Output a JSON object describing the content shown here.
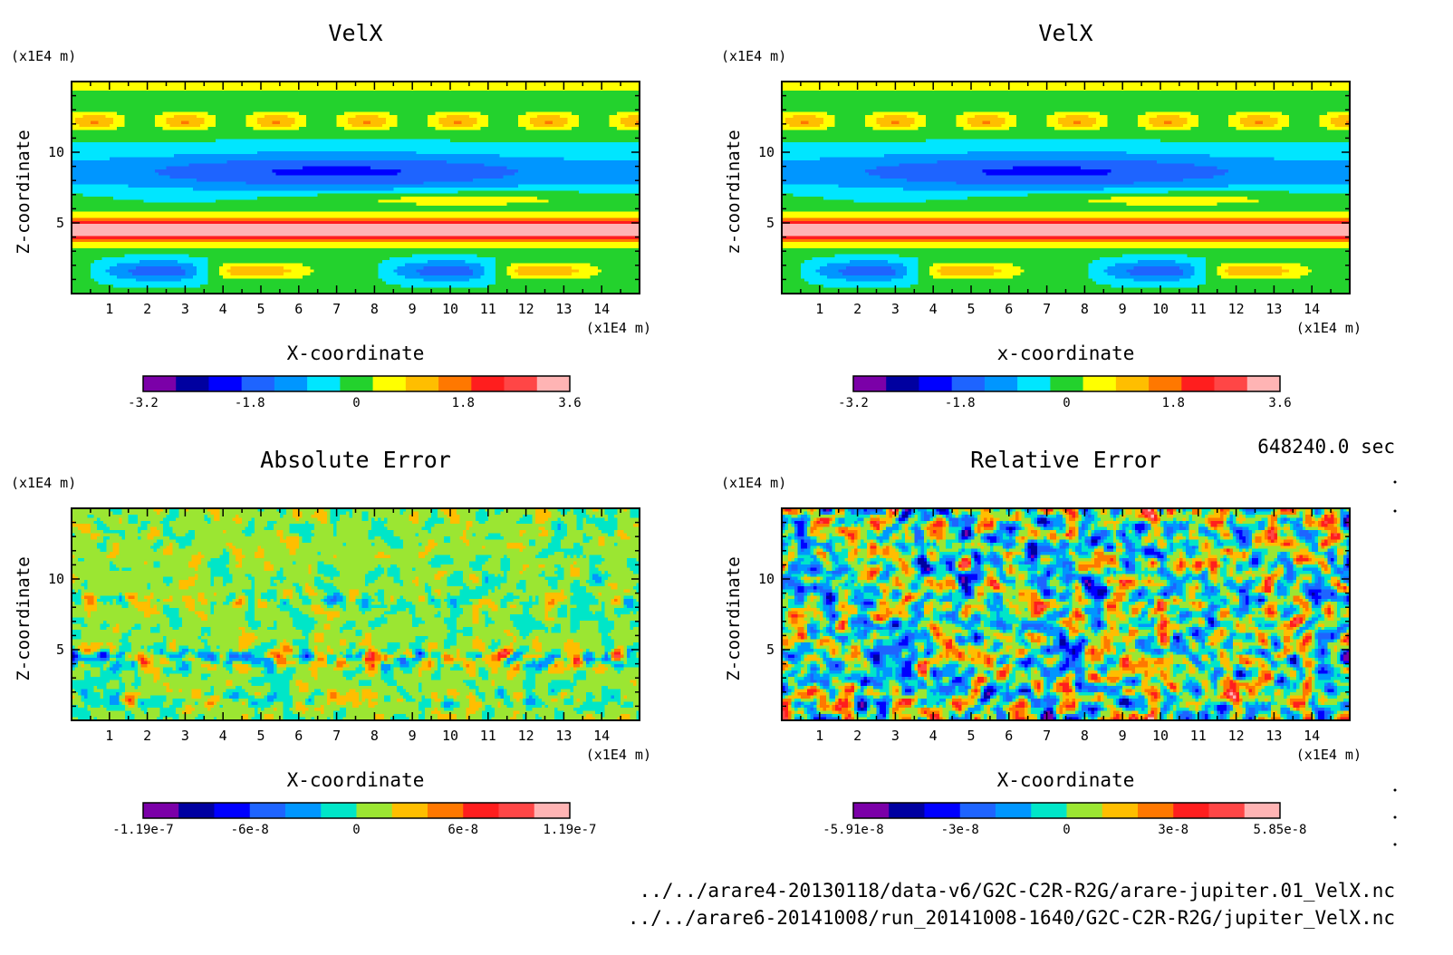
{
  "time_label": "648240.0 sec",
  "files": [
    "../../arare4-20130118/data-v6/G2C-C2R-R2G/arare-jupiter.01_VelX.nc",
    "../../arare6-20141008/run_20141008-1640/G2C-C2R-R2G/jupiter_VelX.nc"
  ],
  "chart_data": [
    {
      "type": "heatmap",
      "title": "VelX",
      "xlabel": "X-coordinate",
      "ylabel": "Z-coordinate",
      "x_unit": "(x1E4 m)",
      "y_unit": "(x1E4 m)",
      "x_ticks": [
        "1",
        "2",
        "3",
        "4",
        "5",
        "6",
        "7",
        "8",
        "9",
        "10",
        "11",
        "12",
        "13",
        "14"
      ],
      "y_ticks": [
        "5",
        "10"
      ],
      "xlim": [
        0,
        15
      ],
      "ylim": [
        0,
        15
      ],
      "pattern": "banded",
      "colorbar": {
        "range": [
          -3.2,
          3.6
        ],
        "tick_labels": [
          "-3.2",
          "-1.8",
          "0",
          "1.8",
          "3.6"
        ],
        "colors": [
          "#7b00a8",
          "#0000a0",
          "#0000ff",
          "#1e64ff",
          "#0096ff",
          "#00e6ff",
          "#23d22d",
          "#ffff00",
          "#ffbe00",
          "#ff7800",
          "#ff1e1e",
          "#ff4646",
          "#ffb4b4"
        ]
      }
    },
    {
      "type": "heatmap",
      "title": "VelX",
      "xlabel": "x-coordinate",
      "ylabel": "z-coordinate",
      "x_unit": "(x1E4 m)",
      "y_unit": "(x1E4 m)",
      "x_ticks": [
        "1",
        "2",
        "3",
        "4",
        "5",
        "6",
        "7",
        "8",
        "9",
        "10",
        "11",
        "12",
        "13",
        "14"
      ],
      "y_ticks": [
        "5",
        "10"
      ],
      "xlim": [
        0,
        15
      ],
      "ylim": [
        0,
        15
      ],
      "pattern": "banded",
      "colorbar": {
        "range": [
          -3.2,
          3.6
        ],
        "tick_labels": [
          "-3.2",
          "-1.8",
          "0",
          "1.8",
          "3.6"
        ],
        "colors": [
          "#7b00a8",
          "#0000a0",
          "#0000ff",
          "#1e64ff",
          "#0096ff",
          "#00e6ff",
          "#23d22d",
          "#ffff00",
          "#ffbe00",
          "#ff7800",
          "#ff1e1e",
          "#ff4646",
          "#ffb4b4"
        ]
      }
    },
    {
      "type": "heatmap",
      "title": "Absolute Error",
      "xlabel": "X-coordinate",
      "ylabel": "Z-coordinate",
      "x_unit": "(x1E4 m)",
      "y_unit": "(x1E4 m)",
      "x_ticks": [
        "1",
        "2",
        "3",
        "4",
        "5",
        "6",
        "7",
        "8",
        "9",
        "10",
        "11",
        "12",
        "13",
        "14"
      ],
      "y_ticks": [
        "5",
        "10"
      ],
      "xlim": [
        0,
        15
      ],
      "ylim": [
        0,
        15
      ],
      "pattern": "noise-abs",
      "colorbar": {
        "range": [
          -1.19e-07,
          1.19e-07
        ],
        "tick_labels": [
          "-1.19e-7",
          "-6e-8",
          "0",
          "6e-8",
          "1.19e-7"
        ],
        "colors": [
          "#7b00a8",
          "#0000a0",
          "#0000ff",
          "#1e64ff",
          "#0096ff",
          "#00e6c8",
          "#9be632",
          "#ffbe00",
          "#ff7800",
          "#ff1e1e",
          "#ff4646",
          "#ffb4b4"
        ]
      }
    },
    {
      "type": "heatmap",
      "title": "Relative Error",
      "xlabel": "X-coordinate",
      "ylabel": "Z-coordinate",
      "x_unit": "(x1E4 m)",
      "y_unit": "(x1E4 m)",
      "x_ticks": [
        "1",
        "2",
        "3",
        "4",
        "5",
        "6",
        "7",
        "8",
        "9",
        "10",
        "11",
        "12",
        "13",
        "14"
      ],
      "y_ticks": [
        "5",
        "10"
      ],
      "xlim": [
        0,
        15
      ],
      "ylim": [
        0,
        15
      ],
      "pattern": "noise-rel",
      "colorbar": {
        "range": [
          -5.91e-08,
          5.85e-08
        ],
        "tick_labels": [
          "-5.91e-8",
          "-3e-8",
          "0",
          "3e-8",
          "5.85e-8"
        ],
        "colors": [
          "#7b00a8",
          "#0000a0",
          "#0000ff",
          "#1e64ff",
          "#0096ff",
          "#00e6c8",
          "#9be632",
          "#ffbe00",
          "#ff7800",
          "#ff1e1e",
          "#ff4646",
          "#ffb4b4"
        ]
      }
    }
  ]
}
